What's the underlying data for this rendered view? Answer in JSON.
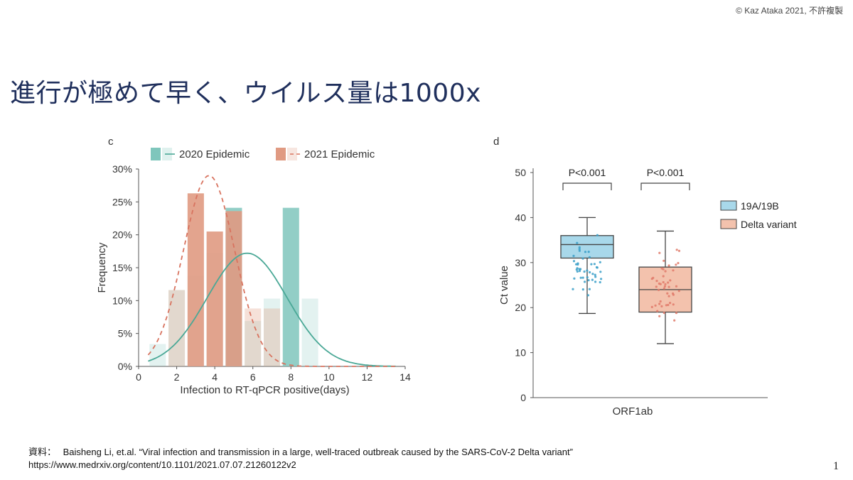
{
  "copyright": "© Kaz Ataka 2021, 不許複製",
  "title": "進行が極めて早く、ウイルス量は1000x",
  "colors": {
    "title": "#1f2f5c",
    "teal": "#7fc6bc",
    "teal_line": "#4aa896",
    "salmon": "#e09a82",
    "salmon_dash": "#d8735f",
    "box_blue": "#a8d8ea",
    "box_blue_pts": "#3a9fc8",
    "box_salmon": "#f3c2ad",
    "box_salmon_pts": "#e07a6a"
  },
  "chart_data": [
    {
      "type": "bar",
      "panel_label": "c",
      "xlabel": "Infection to RT-qPCR positive(days)",
      "ylabel": "Frequency",
      "xlim": [
        0,
        14
      ],
      "ylim": [
        0,
        30
      ],
      "x_ticks": [
        "0",
        "2",
        "4",
        "6",
        "8",
        "10",
        "12",
        "14"
      ],
      "y_ticks": [
        "0%",
        "5%",
        "10%",
        "15%",
        "20%",
        "25%",
        "30%"
      ],
      "legend": [
        "2020 Epidemic",
        "2021 Epidemic"
      ],
      "legend_position": "top",
      "series": [
        {
          "name": "2020 Epidemic",
          "style": "bars + solid fitted curve",
          "bars": [
            {
              "x": 1,
              "value": 3.4
            },
            {
              "x": 2,
              "value": 11.6
            },
            {
              "x": 3,
              "value": 13.8
            },
            {
              "x": 4,
              "value": 17.2
            },
            {
              "x": 5,
              "value": 24.1
            },
            {
              "x": 6,
              "value": 6.9
            },
            {
              "x": 7,
              "value": 10.3
            },
            {
              "x": 8,
              "value": 24.1
            },
            {
              "x": 9,
              "value": 10.3
            }
          ],
          "curve": {
            "mean": 5.7,
            "sd": 2.1,
            "peak": 17.2
          }
        },
        {
          "name": "2021 Epidemic",
          "style": "bars + dashed fitted curve",
          "bars": [
            {
              "x": 2,
              "value": 11.6
            },
            {
              "x": 3,
              "value": 26.3
            },
            {
              "x": 4,
              "value": 20.5
            },
            {
              "x": 5,
              "value": 23.6
            },
            {
              "x": 6,
              "value": 8.8
            },
            {
              "x": 7,
              "value": 8.8
            }
          ],
          "curve": {
            "mean": 3.7,
            "sd": 1.35,
            "peak": 29.0
          }
        }
      ]
    },
    {
      "type": "box",
      "panel_label": "d",
      "xlabel": "ORF1ab",
      "ylabel": "Ct value",
      "ylim": [
        0,
        50
      ],
      "y_ticks": [
        "0",
        "10",
        "20",
        "30",
        "40",
        "50"
      ],
      "legend": [
        "19A/19B",
        "Delta variant"
      ],
      "legend_position": "right",
      "series": [
        {
          "name": "19A/19B",
          "min": 18.7,
          "q1": 31.0,
          "median": 34.0,
          "q3": 36.0,
          "max": 40.0
        },
        {
          "name": "Delta variant",
          "min": 12.0,
          "q1": 19.0,
          "median": 24.0,
          "q3": 29.0,
          "max": 37.0
        }
      ],
      "annotations": [
        "P<0.001",
        "P<0.001"
      ]
    }
  ],
  "source": {
    "label": "資料：",
    "citation": "Baisheng Li, et.al. “Viral infection and transmission in a large, well-traced outbreak caused by the SARS-CoV-2 Delta variant”",
    "url": "https://www.medrxiv.org/content/10.1101/2021.07.07.21260122v2"
  },
  "page_number": "1"
}
